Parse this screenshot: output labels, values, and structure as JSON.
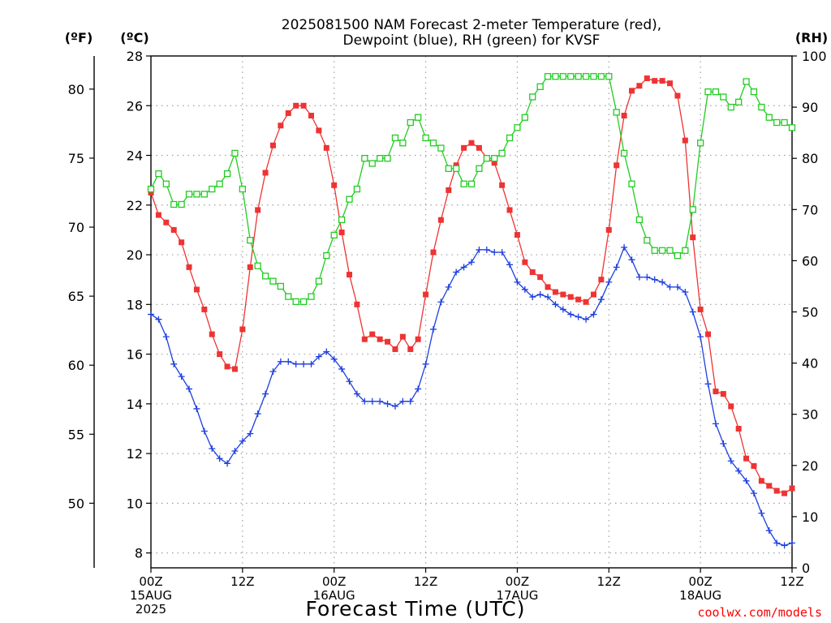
{
  "chart_data": {
    "type": "line",
    "title_line1": "2025081500 NAM Forecast 2-meter Temperature (red),",
    "title_line2": "Dewpoint (blue), RH (green) for KVSF",
    "unit_f": "(ºF)",
    "unit_c": "(ºC)",
    "unit_rh": "(RH)",
    "xlabel": "Forecast Time (UTC)",
    "credit": "coolwx.com/models",
    "x_tick_labels": [
      {
        "hour": 0,
        "l1": "00Z",
        "l2": "15AUG",
        "l3": "2025"
      },
      {
        "hour": 12,
        "l1": "12Z",
        "l2": "",
        "l3": ""
      },
      {
        "hour": 24,
        "l1": "00Z",
        "l2": "16AUG",
        "l3": ""
      },
      {
        "hour": 36,
        "l1": "12Z",
        "l2": "",
        "l3": ""
      },
      {
        "hour": 48,
        "l1": "00Z",
        "l2": "17AUG",
        "l3": ""
      },
      {
        "hour": 60,
        "l1": "12Z",
        "l2": "",
        "l3": ""
      },
      {
        "hour": 72,
        "l1": "00Z",
        "l2": "18AUG",
        "l3": ""
      },
      {
        "hour": 84,
        "l1": "12Z",
        "l2": "",
        "l3": ""
      }
    ],
    "xlim": [
      0,
      84
    ],
    "ylim_c": [
      7.4,
      28
    ],
    "ylim_rh": [
      0,
      100
    ],
    "c_ticks": [
      8,
      10,
      12,
      14,
      16,
      18,
      20,
      22,
      24,
      26,
      28
    ],
    "f_ticks": [
      50,
      55,
      60,
      65,
      70,
      75,
      80
    ],
    "rh_ticks": [
      0,
      10,
      20,
      30,
      40,
      50,
      60,
      70,
      80,
      90,
      100
    ],
    "grid": true,
    "series": [
      {
        "name": "Temperature",
        "color": "#ee3333",
        "marker": "filled-square",
        "values": [
          22.5,
          21.6,
          21.3,
          21.0,
          20.5,
          19.5,
          18.6,
          17.8,
          16.8,
          16.0,
          15.5,
          15.4,
          17.0,
          19.5,
          21.8,
          23.3,
          24.4,
          25.2,
          25.7,
          26.0,
          26.0,
          25.6,
          25.0,
          24.3,
          22.8,
          20.9,
          19.2,
          18.0,
          16.6,
          16.8,
          16.6,
          16.5,
          16.2,
          16.7,
          16.2,
          16.6,
          18.4,
          20.1,
          21.4,
          22.6,
          23.6,
          24.3,
          24.5,
          24.3,
          23.9,
          23.7,
          22.8,
          21.8,
          20.8,
          19.7,
          19.3,
          19.1,
          18.7,
          18.5,
          18.4,
          18.3,
          18.2,
          18.1,
          18.4,
          19.0,
          21.0,
          23.6,
          25.6,
          26.6,
          26.8,
          27.1,
          27.0,
          27.0,
          26.9,
          26.4,
          24.6,
          20.7,
          17.8,
          16.8,
          14.5,
          14.4,
          13.9,
          13.0,
          11.8,
          11.5,
          10.9,
          10.7,
          10.5,
          10.4,
          10.6
        ]
      },
      {
        "name": "Dewpoint",
        "color": "#1e3fe0",
        "marker": "plus",
        "values": [
          17.6,
          17.4,
          16.7,
          15.6,
          15.1,
          14.6,
          13.8,
          12.9,
          12.2,
          11.8,
          11.6,
          12.1,
          12.5,
          12.8,
          13.6,
          14.4,
          15.3,
          15.7,
          15.7,
          15.6,
          15.6,
          15.6,
          15.9,
          16.1,
          15.8,
          15.4,
          14.9,
          14.4,
          14.1,
          14.1,
          14.1,
          14.0,
          13.9,
          14.1,
          14.1,
          14.6,
          15.6,
          17.0,
          18.1,
          18.7,
          19.3,
          19.5,
          19.7,
          20.2,
          20.2,
          20.1,
          20.1,
          19.6,
          18.9,
          18.6,
          18.3,
          18.4,
          18.3,
          18.0,
          17.8,
          17.6,
          17.5,
          17.4,
          17.6,
          18.2,
          18.9,
          19.5,
          20.3,
          19.8,
          19.1,
          19.1,
          19.0,
          18.9,
          18.7,
          18.7,
          18.5,
          17.7,
          16.7,
          14.8,
          13.2,
          12.4,
          11.7,
          11.3,
          10.9,
          10.4,
          9.6,
          8.9,
          8.4,
          8.3,
          8.4
        ]
      },
      {
        "name": "RH",
        "color": "#22cc22",
        "marker": "open-square",
        "values": [
          74,
          77,
          75,
          71,
          71,
          73,
          73,
          73,
          74,
          75,
          77,
          81,
          74,
          64,
          59,
          57,
          56,
          55,
          53,
          52,
          52,
          53,
          56,
          61,
          65,
          68,
          72,
          74,
          80,
          79,
          80,
          80,
          84,
          83,
          87,
          88,
          84,
          83,
          82,
          78,
          78,
          75,
          75,
          78,
          80,
          80,
          81,
          84,
          86,
          88,
          92,
          94,
          96,
          96,
          96,
          96,
          96,
          96,
          96,
          96,
          96,
          89,
          81,
          75,
          68,
          64,
          62,
          62,
          62,
          61,
          62,
          70,
          83,
          93,
          93,
          92,
          90,
          91,
          95,
          93,
          90,
          88,
          87,
          87,
          86
        ]
      }
    ]
  }
}
